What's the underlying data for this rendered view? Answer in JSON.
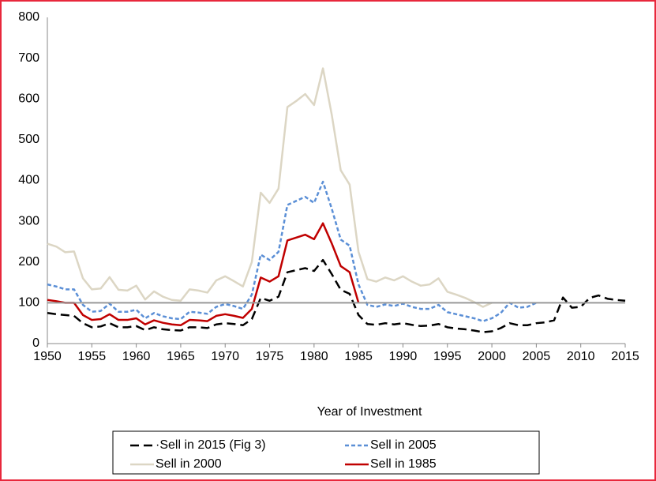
{
  "chart_data": {
    "type": "line",
    "xlabel": "Year of Investment",
    "x": [
      1950,
      1951,
      1952,
      1953,
      1954,
      1955,
      1956,
      1957,
      1958,
      1959,
      1960,
      1961,
      1962,
      1963,
      1964,
      1965,
      1966,
      1967,
      1968,
      1969,
      1970,
      1971,
      1972,
      1973,
      1974,
      1975,
      1976,
      1977,
      1978,
      1979,
      1980,
      1981,
      1982,
      1983,
      1984,
      1985,
      1986,
      1987,
      1988,
      1989,
      1990,
      1991,
      1992,
      1993,
      1994,
      1995,
      1996,
      1997,
      1998,
      1999,
      2000,
      2001,
      2002,
      2003,
      2004,
      2005,
      2006,
      2007,
      2008,
      2009,
      2010,
      2011,
      2012,
      2013,
      2014,
      2015
    ],
    "xlim": [
      1950,
      2015
    ],
    "xticks": [
      1950,
      1955,
      1960,
      1965,
      1970,
      1975,
      1980,
      1985,
      1990,
      1995,
      2000,
      2005,
      2010,
      2015
    ],
    "ylim": [
      0,
      800
    ],
    "yticks": [
      0,
      100,
      200,
      300,
      400,
      500,
      600,
      700,
      800
    ],
    "hline": {
      "value": 100,
      "color": "#999999"
    },
    "series": [
      {
        "name": "·Sell in 2015 (Fig 3)",
        "color": "#000000",
        "dash": "11,6",
        "values": [
          75,
          72,
          70,
          68,
          50,
          40,
          42,
          50,
          40,
          40,
          43,
          33,
          40,
          35,
          33,
          32,
          40,
          40,
          38,
          47,
          50,
          48,
          45,
          60,
          112,
          105,
          115,
          175,
          180,
          185,
          178,
          205,
          170,
          132,
          122,
          70,
          48,
          46,
          50,
          47,
          50,
          46,
          43,
          44,
          48,
          40,
          37,
          35,
          32,
          28,
          30,
          38,
          50,
          45,
          45,
          50,
          52,
          57,
          113,
          88,
          90,
          112,
          118,
          110,
          107,
          105
        ]
      },
      {
        "name": "Sell in 2005",
        "color": "#5b8fd6",
        "dash": "5,3",
        "values": [
          145,
          140,
          133,
          133,
          95,
          78,
          80,
          98,
          78,
          78,
          83,
          62,
          75,
          67,
          62,
          60,
          78,
          76,
          73,
          90,
          97,
          92,
          85,
          120,
          218,
          205,
          225,
          340,
          350,
          360,
          345,
          397,
          330,
          255,
          240,
          145,
          95,
          90,
          96,
          92,
          98,
          90,
          85,
          85,
          95,
          77,
          72,
          67,
          62,
          55,
          62,
          75,
          100,
          88,
          90,
          100,
          null,
          null,
          null,
          null,
          null,
          null,
          null,
          null,
          null,
          null
        ]
      },
      {
        "name": "Sell in 2000",
        "color": "#dcd6c4",
        "dash": null,
        "values": [
          245,
          238,
          224,
          226,
          160,
          133,
          135,
          163,
          132,
          130,
          142,
          108,
          128,
          115,
          107,
          105,
          133,
          130,
          125,
          155,
          165,
          153,
          140,
          200,
          370,
          345,
          380,
          580,
          595,
          612,
          585,
          675,
          560,
          425,
          390,
          225,
          158,
          152,
          162,
          155,
          165,
          152,
          142,
          145,
          160,
          127,
          120,
          112,
          102,
          90,
          100,
          null,
          null,
          null,
          null,
          null,
          null,
          null,
          null,
          null,
          null,
          null,
          null,
          null,
          null,
          null
        ]
      },
      {
        "name": "Sell in 1985",
        "color": "#c00000",
        "dash": null,
        "values": [
          107,
          104,
          100,
          100,
          70,
          58,
          60,
          72,
          58,
          58,
          62,
          47,
          57,
          51,
          47,
          45,
          58,
          57,
          55,
          68,
          72,
          68,
          63,
          85,
          162,
          152,
          165,
          253,
          260,
          267,
          256,
          295,
          245,
          190,
          175,
          100,
          null,
          null,
          null,
          null,
          null,
          null,
          null,
          null,
          null,
          null,
          null,
          null,
          null,
          null,
          null,
          null,
          null,
          null,
          null,
          null,
          null,
          null,
          null,
          null,
          null,
          null,
          null,
          null,
          null,
          null
        ]
      }
    ]
  }
}
